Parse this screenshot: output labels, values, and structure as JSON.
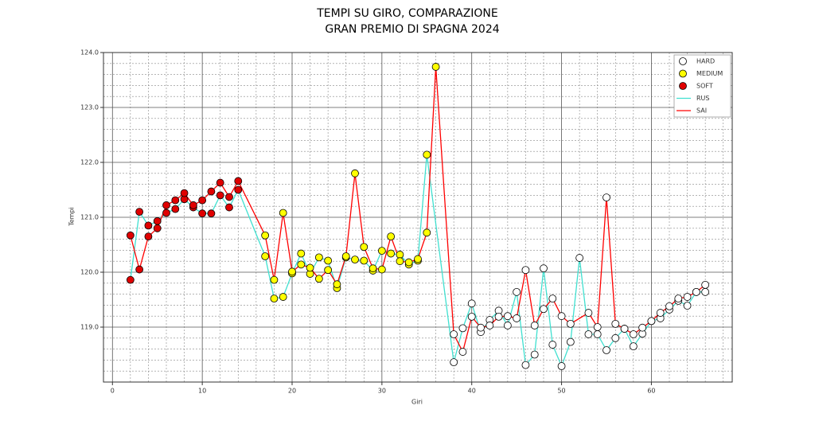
{
  "chart_data": {
    "type": "line",
    "title": "TEMPI SU GIRO, COMPARAZIONE",
    "subtitle": "GRAN PREMIO DI SPAGNA 2024",
    "x_label": "Giri",
    "y_label": "Tempi",
    "xlim": [
      -1,
      69
    ],
    "ylim": [
      118,
      124
    ],
    "xticks": [
      0,
      10,
      20,
      30,
      40,
      50,
      60
    ],
    "yticks": [
      {
        "value": 119,
        "label": "119.0"
      },
      {
        "value": 120,
        "label": "120.0"
      },
      {
        "value": 121,
        "label": "121.0"
      },
      {
        "value": 122,
        "label": "122.0"
      },
      {
        "value": 123,
        "label": "123.0"
      },
      {
        "value": 124,
        "label": "124.0"
      }
    ],
    "minor_xticks": [
      2,
      4,
      6,
      8,
      12,
      14,
      16,
      18,
      22,
      24,
      26,
      28,
      32,
      34,
      36,
      38,
      42,
      44,
      46,
      48,
      52,
      54,
      56,
      58,
      62,
      64,
      66,
      68
    ],
    "minor_yticks": [
      118.2,
      118.4,
      118.6,
      118.8,
      119.2,
      119.4,
      119.6,
      119.8,
      120.2,
      120.4,
      120.6,
      120.8,
      121.2,
      121.4,
      121.6,
      121.8,
      122.2,
      122.4,
      122.6,
      122.8,
      123.2,
      123.4,
      123.6,
      123.8
    ],
    "grid": true,
    "legend": "upper right",
    "compounds": [
      {
        "name": "HARD",
        "color": "#ffffff"
      },
      {
        "name": "MEDIUM",
        "color": "#ffff00"
      },
      {
        "name": "SOFT",
        "color": "#e00000"
      }
    ],
    "series": [
      {
        "name": "RUS",
        "color": "#40e0d0",
        "x": [
          2,
          3,
          4,
          5,
          6,
          7,
          8,
          9,
          10,
          11,
          12,
          13,
          14,
          17,
          18,
          19,
          20,
          21,
          22,
          23,
          24,
          25,
          26,
          27,
          28,
          29,
          30,
          31,
          32,
          33,
          34,
          35,
          38,
          39,
          40,
          41,
          42,
          43,
          44,
          45,
          46,
          47,
          48,
          49,
          50,
          51,
          52,
          53,
          54,
          55,
          56,
          57,
          58,
          59,
          60,
          61,
          62,
          63,
          64,
          65,
          66
        ],
        "values": [
          119.86,
          121.1,
          120.85,
          120.93,
          121.08,
          121.15,
          121.33,
          121.18,
          121.07,
          121.07,
          121.4,
          121.18,
          121.5,
          120.29,
          119.52,
          119.55,
          119.98,
          120.34,
          119.97,
          120.27,
          120.21,
          119.71,
          120.27,
          120.23,
          120.21,
          120.03,
          120.39,
          120.34,
          120.32,
          120.14,
          120.21,
          122.14,
          118.36,
          118.98,
          119.43,
          118.91,
          119.13,
          119.3,
          119.03,
          119.64,
          118.31,
          118.5,
          120.07,
          118.68,
          118.29,
          118.73,
          120.26,
          118.87,
          118.87,
          118.58,
          118.8,
          118.97,
          118.65,
          118.88,
          119.11,
          119.16,
          119.32,
          119.48,
          119.39,
          119.64,
          119.64
        ],
        "compound": [
          "SOFT",
          "SOFT",
          "SOFT",
          "SOFT",
          "SOFT",
          "SOFT",
          "SOFT",
          "SOFT",
          "SOFT",
          "SOFT",
          "SOFT",
          "SOFT",
          "SOFT",
          "MEDIUM",
          "MEDIUM",
          "MEDIUM",
          "MEDIUM",
          "MEDIUM",
          "MEDIUM",
          "MEDIUM",
          "MEDIUM",
          "MEDIUM",
          "MEDIUM",
          "MEDIUM",
          "MEDIUM",
          "MEDIUM",
          "MEDIUM",
          "MEDIUM",
          "MEDIUM",
          "MEDIUM",
          "MEDIUM",
          "MEDIUM",
          "HARD",
          "HARD",
          "HARD",
          "HARD",
          "HARD",
          "HARD",
          "HARD",
          "HARD",
          "HARD",
          "HARD",
          "HARD",
          "HARD",
          "HARD",
          "HARD",
          "HARD",
          "HARD",
          "HARD",
          "HARD",
          "HARD",
          "HARD",
          "HARD",
          "HARD",
          "HARD",
          "HARD",
          "HARD",
          "HARD",
          "HARD",
          "HARD",
          "HARD"
        ]
      },
      {
        "name": "SAI",
        "color": "#ff0000",
        "x": [
          2,
          3,
          4,
          5,
          6,
          7,
          8,
          9,
          10,
          11,
          12,
          13,
          14,
          17,
          18,
          19,
          20,
          21,
          22,
          23,
          24,
          25,
          26,
          27,
          28,
          29,
          30,
          31,
          32,
          33,
          34,
          35,
          36,
          38,
          39,
          40,
          41,
          42,
          43,
          44,
          45,
          46,
          47,
          48,
          49,
          50,
          51,
          53,
          54,
          55,
          56,
          57,
          58,
          59,
          60,
          61,
          62,
          63,
          64,
          65,
          66
        ],
        "values": [
          120.67,
          120.05,
          120.65,
          120.8,
          121.22,
          121.31,
          121.44,
          121.22,
          121.31,
          121.47,
          121.63,
          121.37,
          121.66,
          120.67,
          119.86,
          121.08,
          120.01,
          120.14,
          120.08,
          119.88,
          120.04,
          119.78,
          120.29,
          121.8,
          120.46,
          120.07,
          120.05,
          120.65,
          120.2,
          120.18,
          120.24,
          120.72,
          123.74,
          118.87,
          118.55,
          119.19,
          118.99,
          119.03,
          119.19,
          119.2,
          119.16,
          120.04,
          119.03,
          119.33,
          119.52,
          119.2,
          119.06,
          119.26,
          119.0,
          121.36,
          119.06,
          118.97,
          118.87,
          118.99,
          119.11,
          119.26,
          119.38,
          119.52,
          119.55,
          119.64,
          119.77
        ],
        "compound": [
          "SOFT",
          "SOFT",
          "SOFT",
          "SOFT",
          "SOFT",
          "SOFT",
          "SOFT",
          "SOFT",
          "SOFT",
          "SOFT",
          "SOFT",
          "SOFT",
          "SOFT",
          "MEDIUM",
          "MEDIUM",
          "MEDIUM",
          "MEDIUM",
          "MEDIUM",
          "MEDIUM",
          "MEDIUM",
          "MEDIUM",
          "MEDIUM",
          "MEDIUM",
          "MEDIUM",
          "MEDIUM",
          "MEDIUM",
          "MEDIUM",
          "MEDIUM",
          "MEDIUM",
          "MEDIUM",
          "MEDIUM",
          "MEDIUM",
          "MEDIUM",
          "HARD",
          "HARD",
          "HARD",
          "HARD",
          "HARD",
          "HARD",
          "HARD",
          "HARD",
          "HARD",
          "HARD",
          "HARD",
          "HARD",
          "HARD",
          "HARD",
          "HARD",
          "HARD",
          "HARD",
          "HARD",
          "HARD",
          "HARD",
          "HARD",
          "HARD",
          "HARD",
          "HARD",
          "HARD",
          "HARD",
          "HARD",
          "HARD"
        ]
      }
    ]
  }
}
